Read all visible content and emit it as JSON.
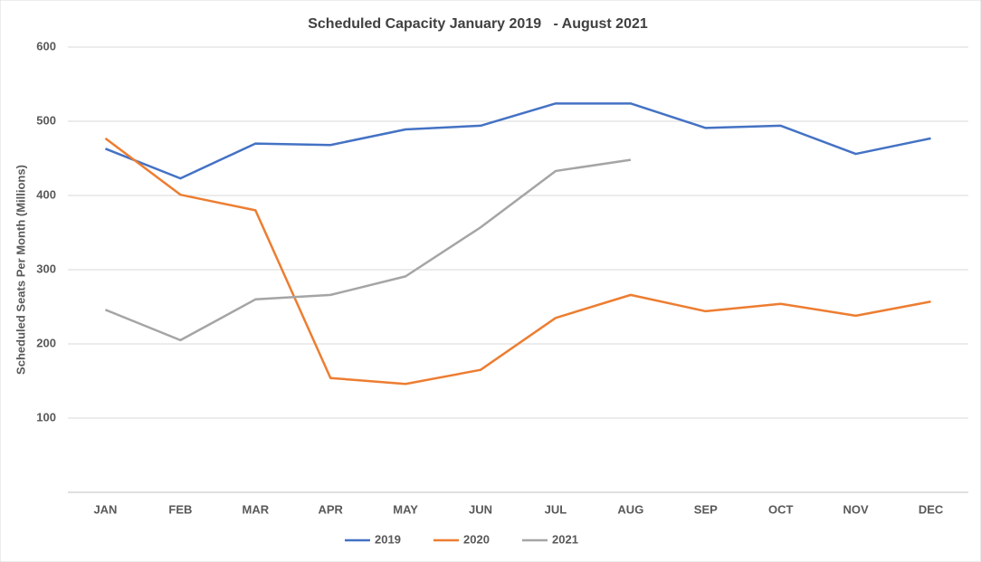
{
  "chart_data": {
    "type": "line",
    "title": "Scheduled Capacity January 2019   - August 2021",
    "y_label": "Scheduled Seats Per Month (Millions)",
    "categories": [
      "JAN",
      "FEB",
      "MAR",
      "APR",
      "MAY",
      "JUN",
      "JUL",
      "AUG",
      "SEP",
      "OCT",
      "NOV",
      "DEC"
    ],
    "series": [
      {
        "name": "2019",
        "color": "#4472c4",
        "values": [
          463,
          423,
          470,
          468,
          489,
          494,
          524,
          524,
          491,
          494,
          456,
          477
        ]
      },
      {
        "name": "2020",
        "color": "#ed7d31",
        "values": [
          477,
          401,
          380,
          154,
          146,
          165,
          235,
          266,
          244,
          254,
          238,
          257
        ]
      },
      {
        "name": "2021",
        "color": "#a5a5a5",
        "values": [
          246,
          205,
          260,
          266,
          291,
          357,
          433,
          448,
          null,
          null,
          null,
          null
        ]
      }
    ],
    "ylim": [
      0,
      600
    ],
    "yticks": [
      100,
      200,
      300,
      400,
      500,
      600
    ],
    "grid": true,
    "legend": "bottom"
  }
}
